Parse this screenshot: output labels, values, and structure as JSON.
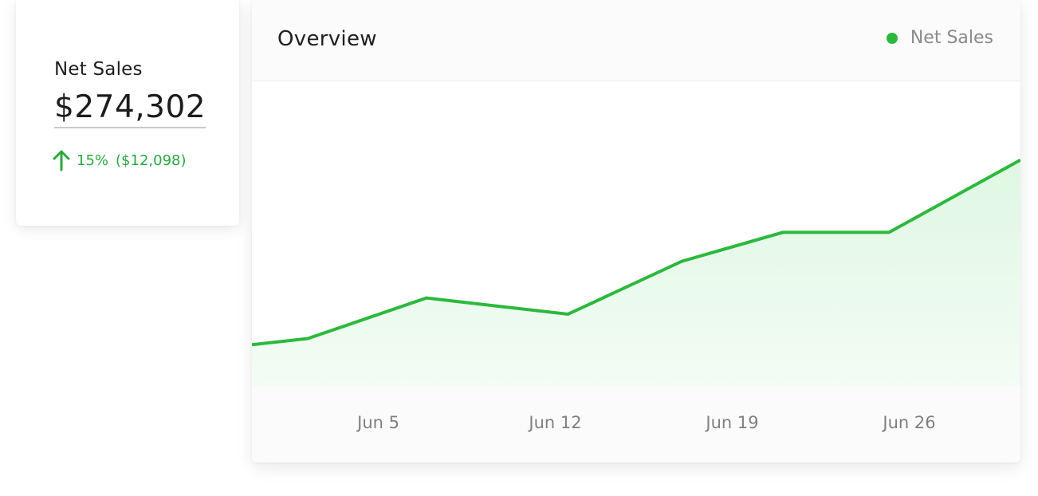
{
  "kpi": {
    "label": "Net Sales",
    "value": "$274,302",
    "delta_percent": "15%",
    "delta_amount": "($12,098)",
    "delta_direction": "up",
    "delta_color": "#2aa83f"
  },
  "chart": {
    "title": "Overview",
    "legend_label": "Net Sales",
    "accent_color": "#2db83d"
  },
  "chart_data": {
    "type": "area",
    "title": "Overview",
    "xlabel": "",
    "ylabel": "",
    "x_ticks": [
      "Jun 5",
      "Jun 12",
      "Jun 19",
      "Jun 26"
    ],
    "x_tick_days": [
      5,
      12,
      19,
      26
    ],
    "xlim": [
      0,
      30.4
    ],
    "ylim": [
      0,
      100
    ],
    "grid": false,
    "legend": "top-right",
    "series": [
      {
        "name": "Net Sales",
        "x": [
          0,
          2.2,
          6.9,
          12.5,
          17.0,
          21.0,
          25.2,
          30.4
        ],
        "values": [
          13.5,
          15.5,
          28.8,
          23.5,
          40.8,
          50.3,
          50.3,
          74.0
        ]
      }
    ]
  }
}
